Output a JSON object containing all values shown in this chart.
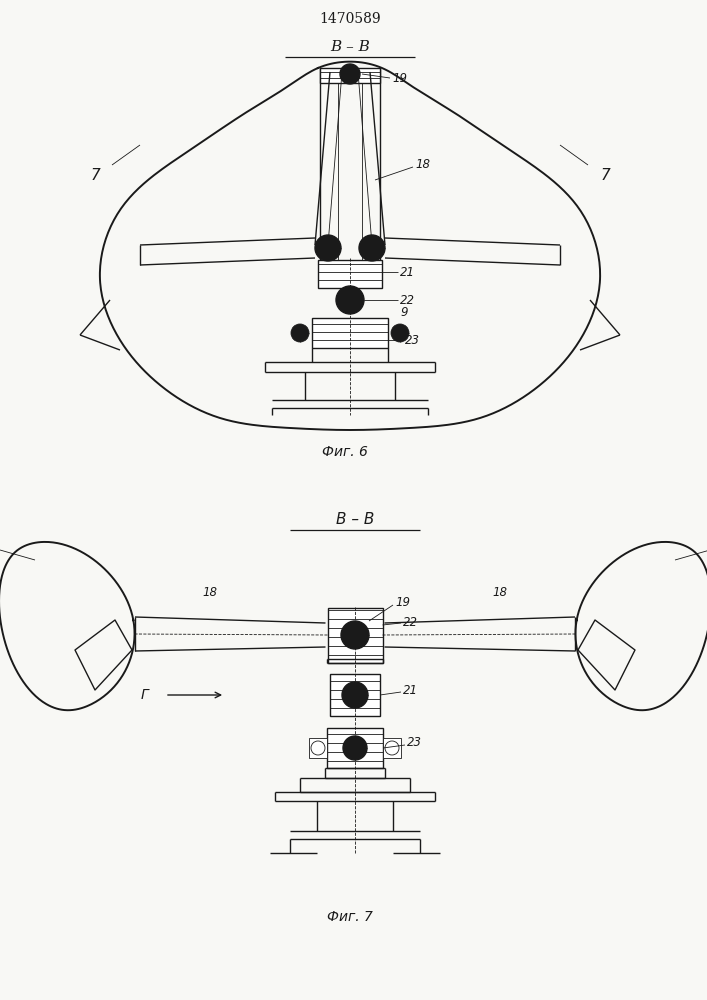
{
  "title": "1470589",
  "fig6_label": "В – В",
  "fig7_label": "В – В",
  "fig6_caption": "Фиг. 6",
  "fig7_caption": "Фиг. 7",
  "line_color": "#1a1a1a",
  "bg_color": "#f8f8f5",
  "lw": 1.0,
  "lw_thin": 0.6,
  "lw_thick": 1.4
}
